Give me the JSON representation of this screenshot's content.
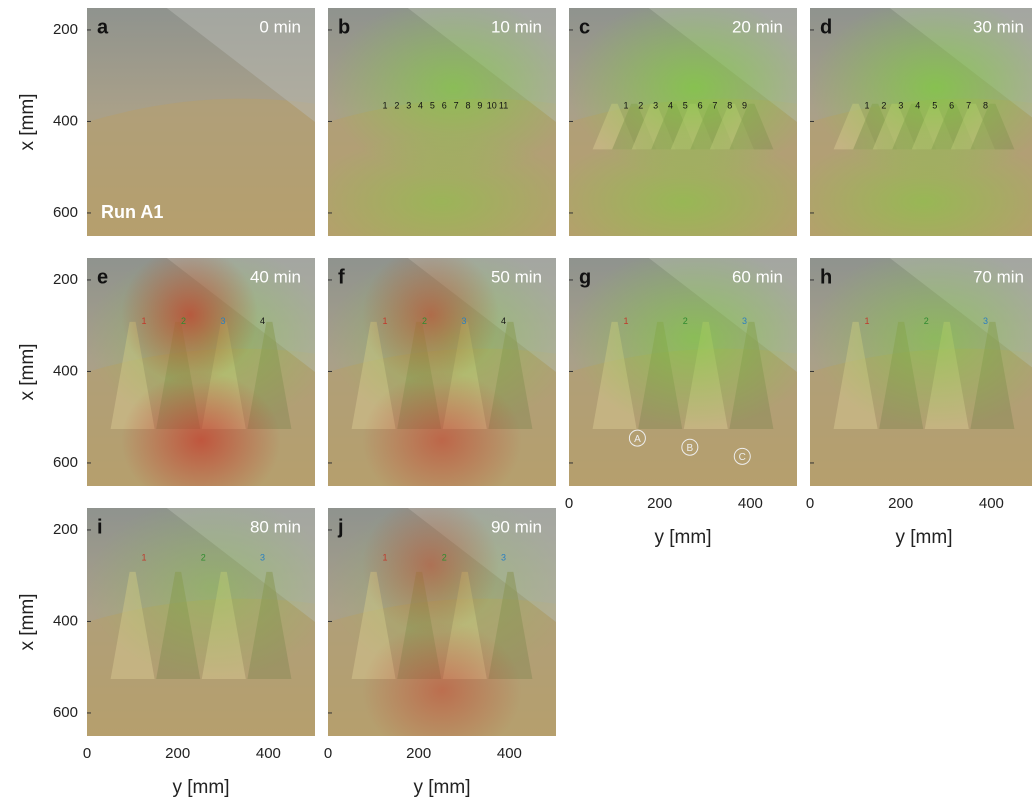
{
  "panels": [
    {
      "letter": "a",
      "time": "0 min",
      "run": "Run A1"
    },
    {
      "letter": "b",
      "time": "10 min",
      "markers": [
        "1",
        "2",
        "3",
        "4",
        "5",
        "6",
        "7",
        "8",
        "9",
        "10",
        "11"
      ]
    },
    {
      "letter": "c",
      "time": "20 min",
      "markers": [
        "1",
        "2",
        "3",
        "4",
        "5",
        "6",
        "7",
        "8",
        "9"
      ]
    },
    {
      "letter": "d",
      "time": "30 min",
      "markers": [
        "1",
        "2",
        "3",
        "4",
        "5",
        "6",
        "7",
        "8"
      ]
    },
    {
      "letter": "e",
      "time": "40 min",
      "markers": [
        "1",
        "2",
        "3",
        "4"
      ]
    },
    {
      "letter": "f",
      "time": "50 min",
      "markers": [
        "1",
        "2",
        "3",
        "4"
      ]
    },
    {
      "letter": "g",
      "time": "60 min",
      "markers": [
        "1",
        "2",
        "3"
      ],
      "zones": [
        "A",
        "B",
        "C"
      ]
    },
    {
      "letter": "h",
      "time": "70 min",
      "markers": [
        "1",
        "2",
        "3"
      ]
    },
    {
      "letter": "i",
      "time": "80 min",
      "markers": [
        "1",
        "2",
        "3"
      ]
    },
    {
      "letter": "j",
      "time": "90 min",
      "markers": [
        "1",
        "2",
        "3"
      ]
    }
  ],
  "axes": {
    "x_label": "x [mm]",
    "y_label": "y [mm]",
    "x_ticks": [
      200,
      400,
      600
    ],
    "y_ticks": [
      0,
      200,
      400
    ]
  }
}
